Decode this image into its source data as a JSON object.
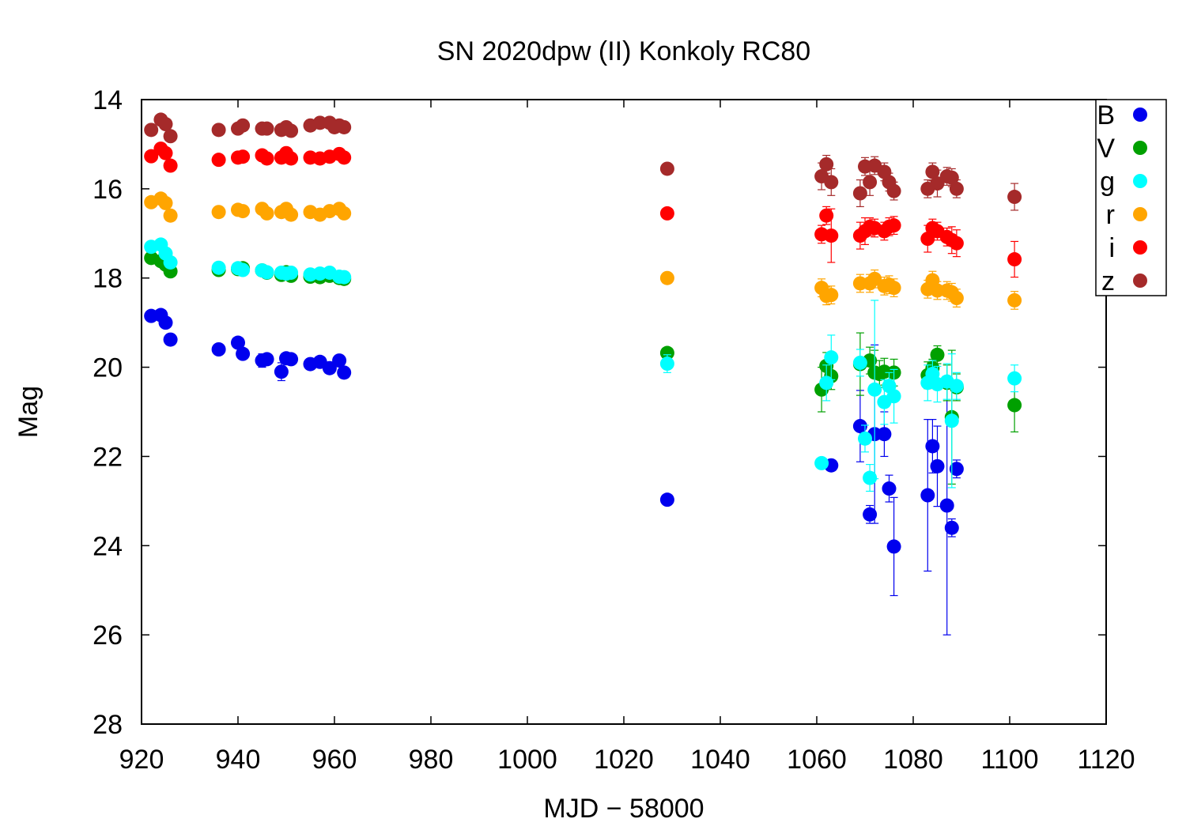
{
  "chart_data": {
    "type": "scatter",
    "title": "SN 2020dpw (II) Konkoly RC80",
    "xlabel": "MJD − 58000",
    "ylabel": "Mag",
    "xlim": [
      920,
      1120
    ],
    "ylim": [
      14,
      28
    ],
    "y_inverted": true,
    "x_ticks": [
      920,
      940,
      960,
      980,
      1000,
      1020,
      1040,
      1060,
      1080,
      1100,
      1120
    ],
    "y_ticks": [
      14,
      16,
      18,
      20,
      22,
      24,
      26,
      28
    ],
    "legend_position": "top-right",
    "series": [
      {
        "name": "B",
        "color": "#0000ee",
        "points": [
          [
            922,
            18.85,
            0.1
          ],
          [
            924,
            18.83,
            0.1
          ],
          [
            925,
            19.0,
            0.1
          ],
          [
            926,
            19.38,
            0.1
          ],
          [
            936,
            19.6,
            0.1
          ],
          [
            940,
            19.45,
            0.1
          ],
          [
            941,
            19.7,
            0.1
          ],
          [
            945,
            19.85,
            0.15
          ],
          [
            946,
            19.82,
            0.1
          ],
          [
            949,
            20.1,
            0.2
          ],
          [
            950,
            19.8,
            0.1
          ],
          [
            951,
            19.82,
            0.1
          ],
          [
            955,
            19.93,
            0.1
          ],
          [
            957,
            19.88,
            0.1
          ],
          [
            959,
            20.02,
            0.1
          ],
          [
            961,
            19.85,
            0.1
          ],
          [
            962,
            20.12,
            0.1
          ],
          [
            1029,
            22.97,
            0.1
          ],
          [
            1063,
            22.2,
            0.1
          ],
          [
            1069,
            21.32,
            0.8
          ],
          [
            1071,
            23.3,
            0.2
          ],
          [
            1072,
            21.5,
            2.0
          ],
          [
            1074,
            21.5,
            0.5
          ],
          [
            1075,
            22.72,
            0.3
          ],
          [
            1076,
            24.02,
            1.1
          ],
          [
            1083,
            22.87,
            1.7
          ],
          [
            1084,
            21.77,
            0.6
          ],
          [
            1085,
            22.22,
            0.9
          ],
          [
            1087,
            23.1,
            2.9
          ],
          [
            1088,
            23.6,
            0.2
          ],
          [
            1089,
            22.28,
            0.2
          ]
        ]
      },
      {
        "name": "V",
        "color": "#00a000",
        "points": [
          [
            922,
            17.55,
            0.1
          ],
          [
            924,
            17.62,
            0.1
          ],
          [
            925,
            17.7,
            0.1
          ],
          [
            926,
            17.85,
            0.1
          ],
          [
            936,
            17.82,
            0.1
          ],
          [
            940,
            17.8,
            0.1
          ],
          [
            941,
            17.78,
            0.1
          ],
          [
            945,
            17.83,
            0.1
          ],
          [
            946,
            17.88,
            0.1
          ],
          [
            949,
            17.93,
            0.1
          ],
          [
            950,
            17.87,
            0.1
          ],
          [
            951,
            17.95,
            0.1
          ],
          [
            955,
            17.97,
            0.1
          ],
          [
            957,
            17.98,
            0.1
          ],
          [
            959,
            17.95,
            0.1
          ],
          [
            961,
            18.0,
            0.1
          ],
          [
            962,
            18.02,
            0.1
          ],
          [
            1029,
            19.68,
            0.1
          ],
          [
            1061,
            20.5,
            0.5
          ],
          [
            1062,
            19.97,
            0.3
          ],
          [
            1063,
            20.2,
            0.3
          ],
          [
            1069,
            19.93,
            0.7
          ],
          [
            1071,
            19.85,
            0.3
          ],
          [
            1072,
            20.12,
            0.5
          ],
          [
            1073,
            20.15,
            0.3
          ],
          [
            1074,
            20.1,
            0.3
          ],
          [
            1076,
            20.12,
            0.3
          ],
          [
            1083,
            20.18,
            0.3
          ],
          [
            1084,
            20.02,
            0.2
          ],
          [
            1085,
            19.72,
            0.2
          ],
          [
            1087,
            20.35,
            0.4
          ],
          [
            1088,
            21.12,
            1.5
          ],
          [
            1089,
            20.45,
            0.3
          ],
          [
            1101,
            20.85,
            0.6
          ]
        ]
      },
      {
        "name": "g",
        "color": "#00ffff",
        "points": [
          [
            922,
            17.3,
            0.1
          ],
          [
            924,
            17.25,
            0.1
          ],
          [
            925,
            17.45,
            0.1
          ],
          [
            926,
            17.65,
            0.1
          ],
          [
            936,
            17.77,
            0.1
          ],
          [
            940,
            17.78,
            0.1
          ],
          [
            941,
            17.82,
            0.1
          ],
          [
            945,
            17.83,
            0.1
          ],
          [
            946,
            17.87,
            0.1
          ],
          [
            949,
            17.88,
            0.1
          ],
          [
            950,
            17.9,
            0.1
          ],
          [
            951,
            17.88,
            0.1
          ],
          [
            955,
            17.92,
            0.1
          ],
          [
            957,
            17.9,
            0.1
          ],
          [
            959,
            17.88,
            0.1
          ],
          [
            961,
            17.97,
            0.1
          ],
          [
            962,
            17.98,
            0.1
          ],
          [
            1029,
            19.92,
            0.2
          ],
          [
            1061,
            22.15,
            0.1
          ],
          [
            1062,
            20.35,
            0.4
          ],
          [
            1063,
            19.78,
            0.5
          ],
          [
            1069,
            19.9,
            0.3
          ],
          [
            1070,
            21.6,
            0.3
          ],
          [
            1071,
            22.48,
            0.3
          ],
          [
            1072,
            20.5,
            2.0
          ],
          [
            1074,
            20.78,
            0.5
          ],
          [
            1075,
            20.42,
            0.3
          ],
          [
            1076,
            20.65,
            0.6
          ],
          [
            1083,
            20.35,
            0.4
          ],
          [
            1084,
            20.15,
            0.3
          ],
          [
            1085,
            20.38,
            0.4
          ],
          [
            1087,
            20.32,
            0.4
          ],
          [
            1088,
            21.2,
            1.5
          ],
          [
            1089,
            20.42,
            0.3
          ],
          [
            1101,
            20.25,
            0.3
          ]
        ]
      },
      {
        "name": "r",
        "color": "#ffa500",
        "points": [
          [
            922,
            16.3,
            0.1
          ],
          [
            924,
            16.22,
            0.1
          ],
          [
            925,
            16.32,
            0.1
          ],
          [
            926,
            16.6,
            0.1
          ],
          [
            936,
            16.52,
            0.1
          ],
          [
            940,
            16.47,
            0.1
          ],
          [
            941,
            16.5,
            0.1
          ],
          [
            945,
            16.45,
            0.1
          ],
          [
            946,
            16.55,
            0.1
          ],
          [
            949,
            16.52,
            0.1
          ],
          [
            950,
            16.45,
            0.1
          ],
          [
            951,
            16.58,
            0.1
          ],
          [
            955,
            16.52,
            0.1
          ],
          [
            957,
            16.58,
            0.1
          ],
          [
            959,
            16.5,
            0.1
          ],
          [
            961,
            16.45,
            0.1
          ],
          [
            962,
            16.55,
            0.1
          ],
          [
            1029,
            18.0,
            0.1
          ],
          [
            1061,
            18.22,
            0.2
          ],
          [
            1062,
            18.4,
            0.2
          ],
          [
            1063,
            18.38,
            0.2
          ],
          [
            1069,
            18.12,
            0.2
          ],
          [
            1071,
            18.12,
            0.2
          ],
          [
            1072,
            18.02,
            0.2
          ],
          [
            1074,
            18.18,
            0.2
          ],
          [
            1075,
            18.15,
            0.2
          ],
          [
            1076,
            18.22,
            0.2
          ],
          [
            1083,
            18.25,
            0.2
          ],
          [
            1084,
            18.05,
            0.2
          ],
          [
            1085,
            18.28,
            0.2
          ],
          [
            1087,
            18.28,
            0.2
          ],
          [
            1088,
            18.32,
            0.2
          ],
          [
            1089,
            18.45,
            0.2
          ],
          [
            1101,
            18.5,
            0.2
          ]
        ]
      },
      {
        "name": "i",
        "color": "#ff0000",
        "points": [
          [
            922,
            15.27,
            0.1
          ],
          [
            924,
            15.1,
            0.1
          ],
          [
            925,
            15.2,
            0.1
          ],
          [
            926,
            15.48,
            0.1
          ],
          [
            936,
            15.35,
            0.1
          ],
          [
            940,
            15.3,
            0.1
          ],
          [
            941,
            15.28,
            0.1
          ],
          [
            945,
            15.25,
            0.1
          ],
          [
            946,
            15.32,
            0.1
          ],
          [
            949,
            15.3,
            0.1
          ],
          [
            950,
            15.2,
            0.1
          ],
          [
            951,
            15.32,
            0.1
          ],
          [
            955,
            15.3,
            0.1
          ],
          [
            957,
            15.32,
            0.1
          ],
          [
            959,
            15.28,
            0.1
          ],
          [
            961,
            15.22,
            0.1
          ],
          [
            962,
            15.3,
            0.1
          ],
          [
            1029,
            16.55,
            0.1
          ],
          [
            1061,
            17.02,
            0.2
          ],
          [
            1062,
            16.6,
            0.2
          ],
          [
            1063,
            17.05,
            0.6
          ],
          [
            1069,
            17.05,
            0.3
          ],
          [
            1070,
            16.95,
            0.3
          ],
          [
            1071,
            16.85,
            0.2
          ],
          [
            1072,
            16.88,
            0.2
          ],
          [
            1074,
            16.95,
            0.2
          ],
          [
            1075,
            16.85,
            0.2
          ],
          [
            1076,
            16.82,
            0.2
          ],
          [
            1083,
            17.12,
            0.3
          ],
          [
            1084,
            16.88,
            0.2
          ],
          [
            1085,
            16.95,
            0.2
          ],
          [
            1087,
            17.08,
            0.2
          ],
          [
            1088,
            17.15,
            0.3
          ],
          [
            1089,
            17.22,
            0.3
          ],
          [
            1101,
            17.58,
            0.4
          ]
        ]
      },
      {
        "name": "z",
        "color": "#a52a2a",
        "points": [
          [
            922,
            14.68,
            0.1
          ],
          [
            924,
            14.45,
            0.1
          ],
          [
            925,
            14.55,
            0.1
          ],
          [
            926,
            14.82,
            0.1
          ],
          [
            936,
            14.68,
            0.1
          ],
          [
            940,
            14.65,
            0.1
          ],
          [
            941,
            14.58,
            0.1
          ],
          [
            945,
            14.65,
            0.1
          ],
          [
            946,
            14.65,
            0.1
          ],
          [
            949,
            14.68,
            0.1
          ],
          [
            950,
            14.62,
            0.1
          ],
          [
            951,
            14.7,
            0.1
          ],
          [
            955,
            14.58,
            0.1
          ],
          [
            957,
            14.52,
            0.1
          ],
          [
            959,
            14.52,
            0.1
          ],
          [
            960,
            14.62,
            0.1
          ],
          [
            961,
            14.58,
            0.1
          ],
          [
            962,
            14.62,
            0.1
          ],
          [
            1029,
            15.55,
            0.1
          ],
          [
            1061,
            15.72,
            0.3
          ],
          [
            1062,
            15.45,
            0.2
          ],
          [
            1063,
            15.85,
            0.3
          ],
          [
            1069,
            16.1,
            0.3
          ],
          [
            1070,
            15.5,
            0.2
          ],
          [
            1071,
            15.85,
            0.3
          ],
          [
            1072,
            15.48,
            0.2
          ],
          [
            1074,
            15.62,
            0.2
          ],
          [
            1075,
            15.85,
            0.2
          ],
          [
            1076,
            16.05,
            0.2
          ],
          [
            1083,
            16.0,
            0.2
          ],
          [
            1084,
            15.62,
            0.2
          ],
          [
            1085,
            15.88,
            0.3
          ],
          [
            1087,
            15.72,
            0.2
          ],
          [
            1088,
            15.75,
            0.2
          ],
          [
            1089,
            16.0,
            0.2
          ],
          [
            1101,
            16.18,
            0.3
          ]
        ]
      }
    ]
  }
}
